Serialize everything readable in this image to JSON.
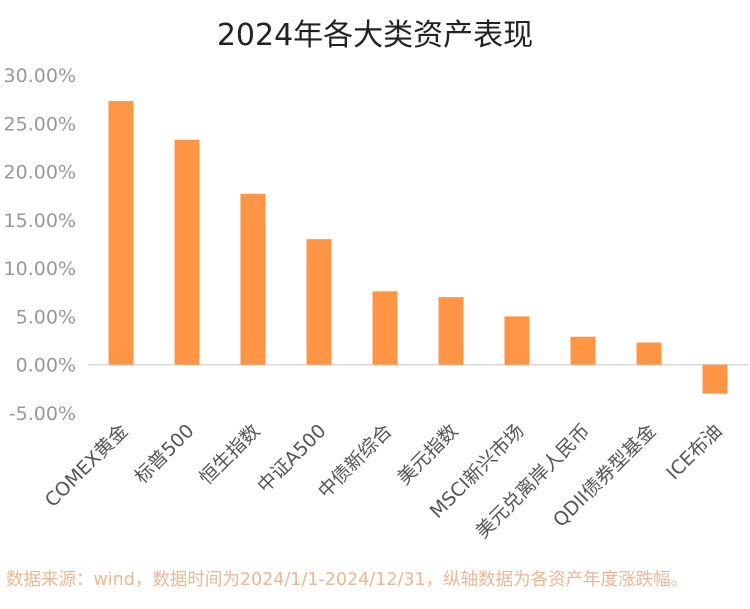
{
  "chart_data": {
    "type": "bar",
    "title": "2024年各大类资产表现",
    "categories": [
      "COMEX黄金",
      "标普500",
      "恒生指数",
      "中证A500",
      "中债新综合",
      "美元指数",
      "MSCI新兴市场",
      "美元兑离岸人民币",
      "QDII债券型基金",
      "ICE布油"
    ],
    "values": [
      27.3,
      23.3,
      17.7,
      13.0,
      7.6,
      7.0,
      5.0,
      2.9,
      2.3,
      -3.0
    ],
    "ylim": [
      -5,
      30
    ],
    "yticks": [
      "30.00%",
      "25.00%",
      "20.00%",
      "15.00%",
      "10.00%",
      "5.00%",
      "0.00%",
      "-5.00%"
    ],
    "ytick_values": [
      30,
      25,
      20,
      15,
      10,
      5,
      0,
      -5
    ],
    "xlabel": "",
    "ylabel": "",
    "grid": false,
    "bar_color": "#ff9545"
  },
  "source_note": "数据来源：wind，数据时间为2024/1/1-2024/12/31，纵轴数据为各资产年度涨跌幅。"
}
